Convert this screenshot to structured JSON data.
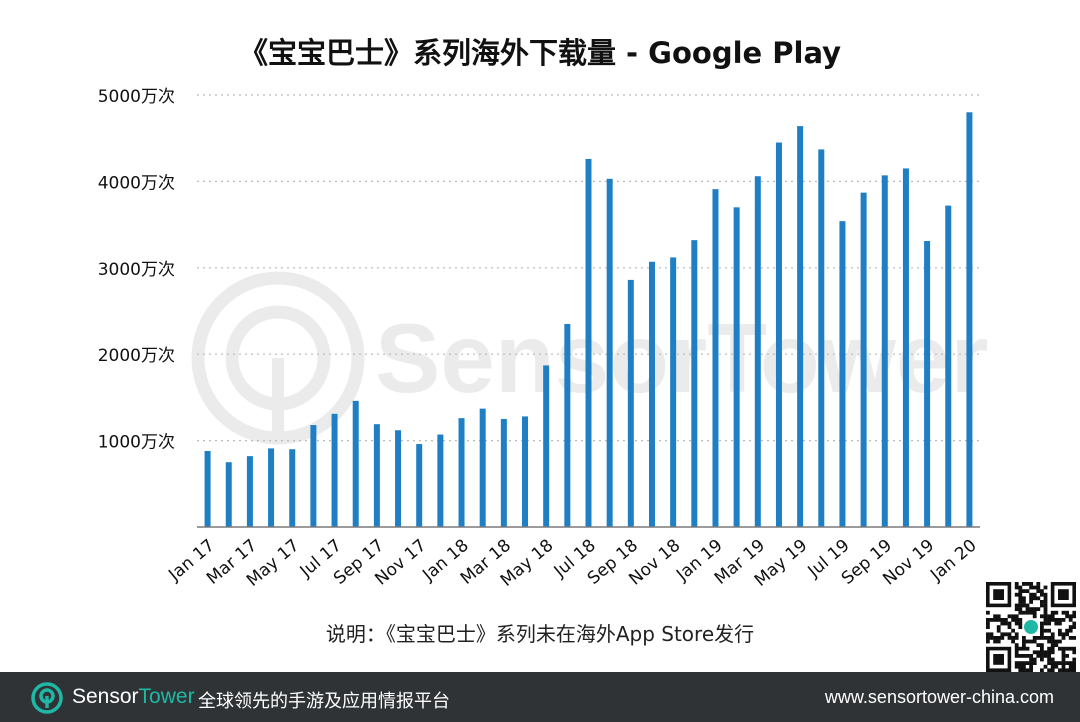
{
  "chart_data": {
    "type": "bar",
    "title": "《宝宝巴士》系列海外下载量 - Google Play",
    "categories": [
      "Jan 17",
      "Feb 17",
      "Mar 17",
      "Apr 17",
      "May 17",
      "Jun 17",
      "Jul 17",
      "Aug 17",
      "Sep 17",
      "Oct 17",
      "Nov 17",
      "Dec 17",
      "Jan 18",
      "Feb 18",
      "Mar 18",
      "Apr 18",
      "May 18",
      "Jun 18",
      "Jul 18",
      "Aug 18",
      "Sep 18",
      "Oct 18",
      "Nov 18",
      "Dec 18",
      "Jan 19",
      "Feb 19",
      "Mar 19",
      "Apr 19",
      "May 19",
      "Jun 19",
      "Jul 19",
      "Aug 19",
      "Sep 19",
      "Oct 19",
      "Nov 19",
      "Dec 19",
      "Jan 20"
    ],
    "x_tick_labels": [
      "Jan 17",
      "Mar 17",
      "May 17",
      "Jul 17",
      "Sep 17",
      "Nov 17",
      "Jan 18",
      "Mar 18",
      "May 18",
      "Jul 18",
      "Sep 18",
      "Nov 18",
      "Jan 19",
      "Mar 19",
      "May 19",
      "Jul 19",
      "Sep 19",
      "Nov 19",
      "Jan 20"
    ],
    "values": [
      880,
      750,
      820,
      910,
      900,
      1180,
      1310,
      1460,
      1190,
      1120,
      960,
      1070,
      1260,
      1370,
      1250,
      1280,
      1870,
      2350,
      4260,
      4030,
      2860,
      3070,
      3120,
      3320,
      3910,
      3700,
      4060,
      4450,
      4640,
      4370,
      3540,
      3870,
      4070,
      4150,
      3310,
      3720,
      4800
    ],
    "unit": "万次",
    "yticks": [
      1000,
      2000,
      3000,
      4000,
      5000
    ],
    "ytick_labels": [
      "1000万次",
      "2000万次",
      "3000万次",
      "4000万次",
      "5000万次"
    ],
    "ylim": [
      0,
      5000
    ],
    "grid": "horizontal dotted",
    "color": "#1f7fc4"
  },
  "watermark": {
    "brand": "SensorTower"
  },
  "note": "说明：《宝宝巴士》系列未在海外App Store发行",
  "footer": {
    "brand_part1": "Sensor",
    "brand_part2": "Tower",
    "tagline": "全球领先的手游及应用情报平台",
    "website": "www.sensortower-china.com",
    "accent": "#1fb8a6",
    "background": "#2f3336"
  }
}
